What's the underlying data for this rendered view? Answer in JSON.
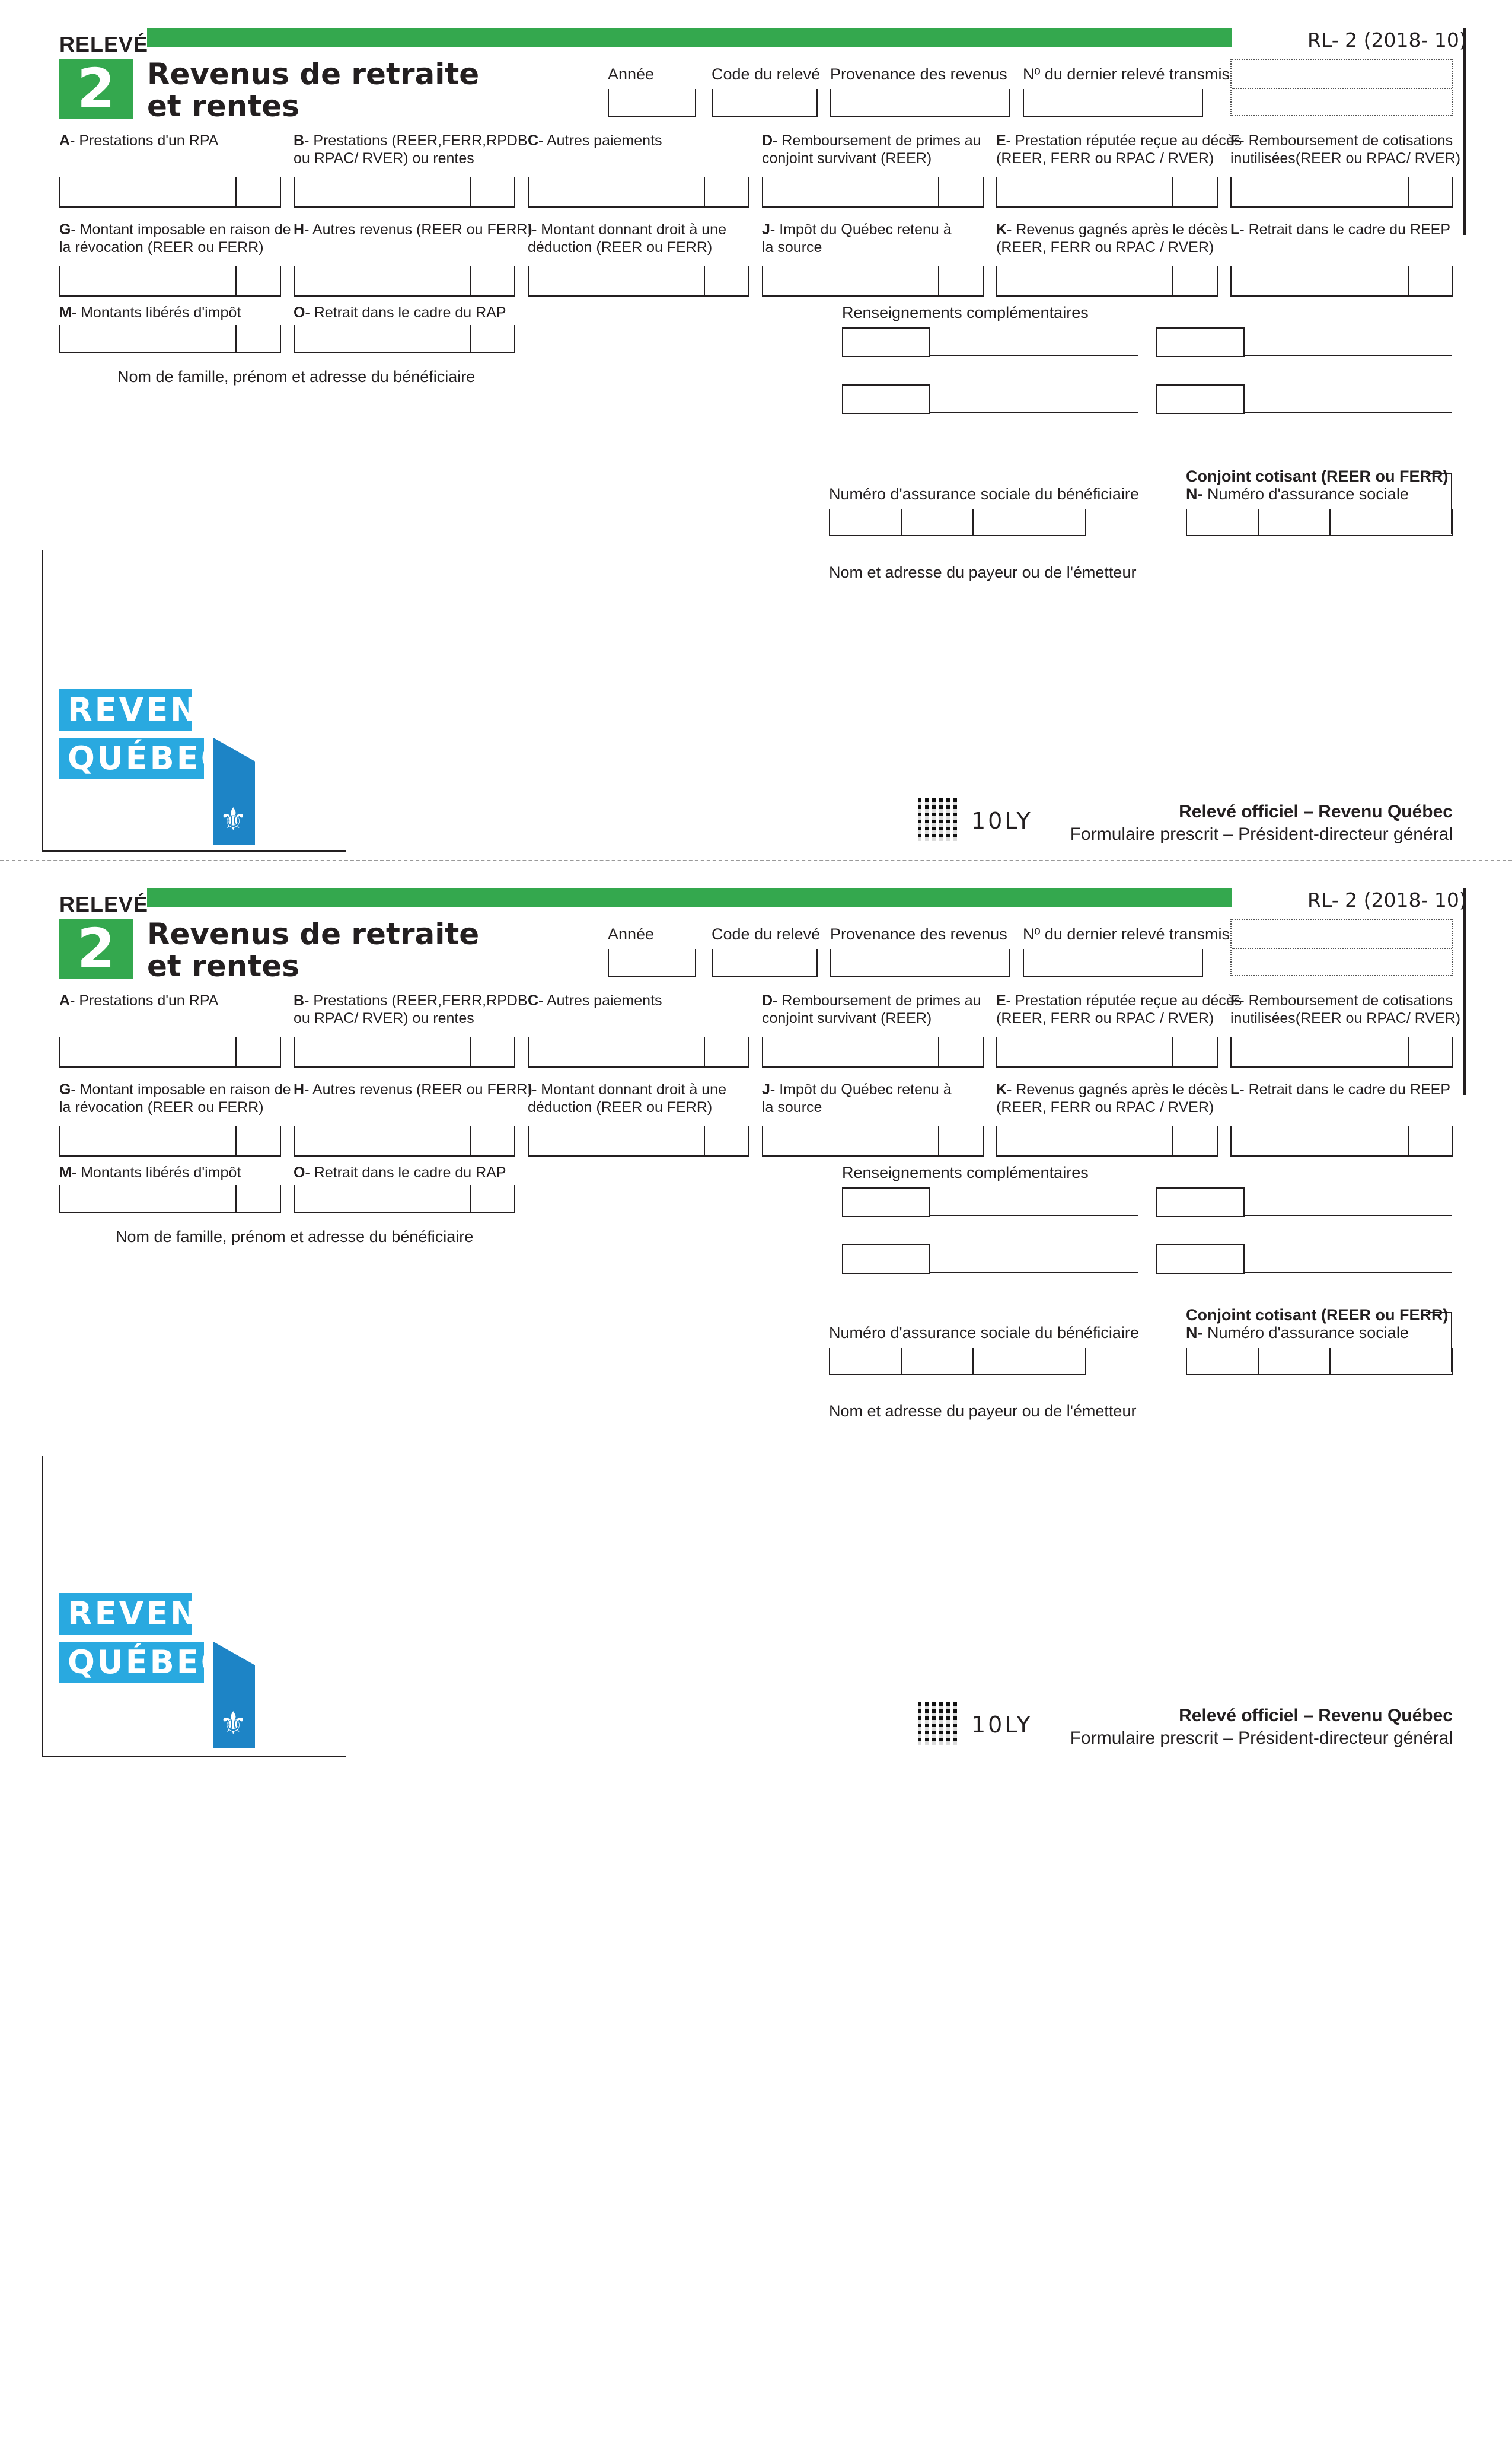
{
  "form": {
    "releve_label": "RELEVÉ",
    "number": "2",
    "title_line1": "Revenus de retraite",
    "title_line2": "et rentes",
    "form_code": "RL- 2 (2018- 10)"
  },
  "header_fields": {
    "annee": "Année",
    "code_releve": "Code du relevé",
    "provenance": "Provenance des revenus",
    "dernier_releve": "Nº du dernier relevé transmis"
  },
  "boxes": {
    "A": {
      "letter": "A-",
      "label": "Prestations d'un RPA"
    },
    "B": {
      "letter": "B-",
      "label": "Prestations (REER,FERR,RPDB\nou RPAC/ RVER) ou rentes"
    },
    "C": {
      "letter": "C-",
      "label": "Autres paiements"
    },
    "D": {
      "letter": "D-",
      "label": "Remboursement de primes au\nconjoint survivant (REER)"
    },
    "E": {
      "letter": "E-",
      "label": "Prestation réputée reçue au décès\n(REER, FERR ou RPAC / RVER)"
    },
    "F": {
      "letter": "F-",
      "label": "Remboursement de cotisations\ninutilisées(REER ou RPAC/ RVER)"
    },
    "G": {
      "letter": "G-",
      "label": "Montant imposable en raison de\nla révocation (REER ou FERR)"
    },
    "H": {
      "letter": "H-",
      "label": "Autres revenus (REER ou FERR)"
    },
    "I": {
      "letter": "I-",
      "label": "Montant donnant droit à une\ndéduction (REER ou FERR)"
    },
    "J": {
      "letter": "J-",
      "label": "Impôt du Québec retenu à\nla source"
    },
    "K": {
      "letter": "K-",
      "label": "Revenus gagnés après le décès\n(REER, FERR ou RPAC / RVER)"
    },
    "L": {
      "letter": "L-",
      "label": "Retrait dans le cadre du REEP"
    },
    "M": {
      "letter": "M-",
      "label": "Montants libérés d'impôt"
    },
    "O": {
      "letter": "O-",
      "label": "Retrait dans le cadre du RAP"
    }
  },
  "labels": {
    "renseignements": "Renseignements complémentaires",
    "nom_beneficiaire": "Nom de famille, prénom et adresse du bénéficiaire",
    "nas_beneficiaire": "Numéro d'assurance sociale du bénéficiaire",
    "conjoint_title": "Conjoint cotisant (REER ou FERR)",
    "nas_conjoint_letter": "N-",
    "nas_conjoint": "Numéro d'assurance sociale",
    "nom_payeur": "Nom et adresse du payeur ou de l'émetteur"
  },
  "logo": {
    "line1": "REVENU",
    "line2": "QUÉBEC"
  },
  "footer": {
    "barcode_code": "10LY",
    "official_line1": "Relevé officiel – Revenu Québec",
    "official_line2": "Formulaire prescrit – Président-directeur général"
  },
  "colors": {
    "green": "#34a84e",
    "logo_blue": "#29a9e0",
    "logo_dark_blue": "#1d84c6"
  }
}
